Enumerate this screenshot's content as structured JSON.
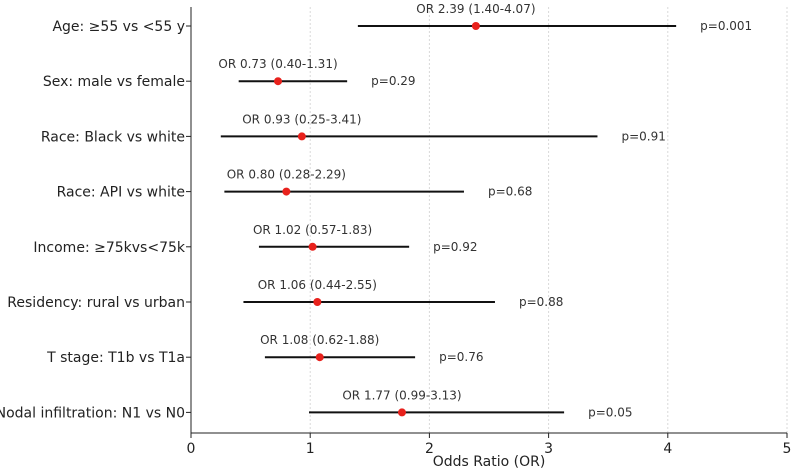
{
  "chart_data": {
    "type": "forest",
    "xlabel": "Odds Ratio (OR)",
    "xlim": [
      0,
      5
    ],
    "xticks": [
      "0",
      "1",
      "2",
      "3",
      "4",
      "5"
    ],
    "grid": "vertical-dotted",
    "colors": {
      "point": "#e8211c",
      "ci": "#111111",
      "grid": "#d9d9d9"
    },
    "rows": [
      {
        "label": "Age: ≥55 vs <55 y",
        "or": 2.39,
        "lo": 1.4,
        "hi": 4.07,
        "or_text": "OR 2.39 (1.40-4.07)",
        "p_text": "p=0.001"
      },
      {
        "label": "Sex: male vs female",
        "or": 0.73,
        "lo": 0.4,
        "hi": 1.31,
        "or_text": "OR 0.73 (0.40-1.31)",
        "p_text": "p=0.29"
      },
      {
        "label": "Race: Black vs white",
        "or": 0.93,
        "lo": 0.25,
        "hi": 3.41,
        "or_text": "OR 0.93 (0.25-3.41)",
        "p_text": "p=0.91"
      },
      {
        "label": "Race: API vs white",
        "or": 0.8,
        "lo": 0.28,
        "hi": 2.29,
        "or_text": "OR 0.80 (0.28-2.29)",
        "p_text": "p=0.68"
      },
      {
        "label": "Income: ≥75kvs<75k",
        "or": 1.02,
        "lo": 0.57,
        "hi": 1.83,
        "or_text": "OR 1.02 (0.57-1.83)",
        "p_text": "p=0.92"
      },
      {
        "label": "Residency: rural vs urban",
        "or": 1.06,
        "lo": 0.44,
        "hi": 2.55,
        "or_text": "OR 1.06 (0.44-2.55)",
        "p_text": "p=0.88"
      },
      {
        "label": "T stage: T1b vs T1a",
        "or": 1.08,
        "lo": 0.62,
        "hi": 1.88,
        "or_text": "OR 1.08 (0.62-1.88)",
        "p_text": "p=0.76"
      },
      {
        "label": "Nodal infiltration: N1 vs N0",
        "or": 1.77,
        "lo": 0.99,
        "hi": 3.13,
        "or_text": "OR 1.77 (0.99-3.13)",
        "p_text": "p=0.05"
      }
    ]
  }
}
